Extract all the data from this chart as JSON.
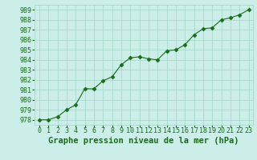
{
  "x": [
    0,
    1,
    2,
    3,
    4,
    5,
    6,
    7,
    8,
    9,
    10,
    11,
    12,
    13,
    14,
    15,
    16,
    17,
    18,
    19,
    20,
    21,
    22,
    23
  ],
  "y": [
    978.0,
    978.0,
    978.3,
    979.0,
    979.5,
    981.1,
    981.1,
    981.9,
    982.3,
    983.5,
    984.2,
    984.3,
    984.1,
    984.0,
    984.9,
    985.0,
    985.5,
    986.5,
    987.1,
    987.2,
    988.0,
    988.2,
    988.5,
    989.0
  ],
  "line_color": "#1a6b1a",
  "marker": "D",
  "marker_size": 2.5,
  "bg_color": "#cceee8",
  "grid_color": "#aad8cc",
  "xlabel": "Graphe pression niveau de la mer (hPa)",
  "xlabel_fontsize": 7.5,
  "ylabel_ticks": [
    978,
    979,
    980,
    981,
    982,
    983,
    984,
    985,
    986,
    987,
    988,
    989
  ],
  "xlim": [
    -0.5,
    23.5
  ],
  "ylim": [
    977.5,
    989.5
  ],
  "tick_fontsize": 6.0,
  "tick_color": "#1a6b1a"
}
